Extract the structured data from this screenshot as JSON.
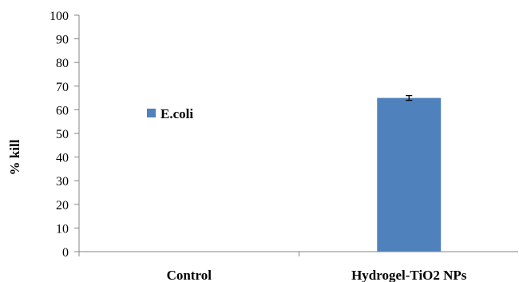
{
  "chart_data": {
    "type": "bar",
    "categories": [
      "Control",
      "Hydrogel-TiO2 NPs"
    ],
    "series": [
      {
        "name": "E.coli",
        "values": [
          0,
          65
        ],
        "error": [
          0,
          1
        ],
        "color": "#4F81BD"
      }
    ],
    "xlabel": "",
    "ylabel": "% kill",
    "ylim": [
      0,
      100
    ],
    "yticks": [
      0,
      10,
      20,
      30,
      40,
      50,
      60,
      70,
      80,
      90,
      100
    ],
    "grid": false,
    "legend": "left"
  }
}
